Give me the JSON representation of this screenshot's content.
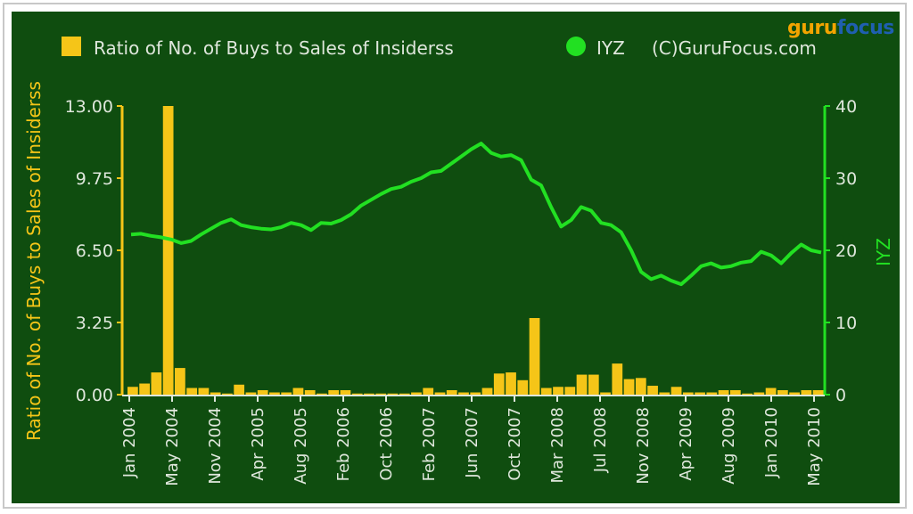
{
  "chart_data": {
    "type": "bar+line",
    "legend": {
      "bar_label": "Ratio of No. of Buys to Sales of Insiderss",
      "line_label": "IYZ",
      "credit": "(C)GuruFocus.com"
    },
    "brand": {
      "part1": "guru",
      "part2": "focus"
    },
    "y_left": {
      "label": "Ratio of No. of Buys to Sales of Insiderss",
      "ticks": [
        "13.00",
        "9.75",
        "6.50",
        "3.25",
        "0.00"
      ],
      "lim": [
        0,
        13
      ]
    },
    "y_right": {
      "label": "IYZ",
      "ticks": [
        "40",
        "30",
        "20",
        "10",
        "0"
      ],
      "lim": [
        0,
        40
      ]
    },
    "x_ticks": [
      "Jan 2004",
      "May 2004",
      "Nov 2004",
      "Apr 2005",
      "Aug 2005",
      "Feb 2006",
      "Oct 2006",
      "Feb 2007",
      "Jun 2007",
      "Oct 2007",
      "Mar 2008",
      "Jul 2008",
      "Nov 2008",
      "Apr 2009",
      "Aug 2009",
      "Jan 2010",
      "May 2010"
    ],
    "bars": [
      0.35,
      0.5,
      1.0,
      13.0,
      1.2,
      0.3,
      0.3,
      0.1,
      0.05,
      0.45,
      0.1,
      0.2,
      0.1,
      0.1,
      0.3,
      0.2,
      0.05,
      0.2,
      0.2,
      0.05,
      0.05,
      0.05,
      0.05,
      0.05,
      0.1,
      0.3,
      0.1,
      0.2,
      0.1,
      0.1,
      0.3,
      0.95,
      1.0,
      0.65,
      3.45,
      0.3,
      0.35,
      0.35,
      0.9,
      0.9,
      0.1,
      1.4,
      0.7,
      0.75,
      0.4,
      0.1,
      0.35,
      0.1,
      0.1,
      0.1,
      0.2,
      0.2,
      0.05,
      0.1,
      0.3,
      0.2,
      0.1,
      0.2,
      0.2
    ],
    "line": [
      [
        0,
        22.2
      ],
      [
        0.5,
        22.3
      ],
      [
        1,
        22.0
      ],
      [
        1.5,
        21.8
      ],
      [
        2,
        21.5
      ],
      [
        2.5,
        21.0
      ],
      [
        3,
        21.3
      ],
      [
        3.5,
        22.2
      ],
      [
        4,
        23.0
      ],
      [
        4.5,
        23.8
      ],
      [
        5,
        24.3
      ],
      [
        5.5,
        23.5
      ],
      [
        6,
        23.2
      ],
      [
        6.5,
        23.0
      ],
      [
        7,
        22.9
      ],
      [
        7.5,
        23.2
      ],
      [
        8,
        23.8
      ],
      [
        8.5,
        23.5
      ],
      [
        9,
        22.8
      ],
      [
        9.5,
        23.8
      ],
      [
        10,
        23.7
      ],
      [
        10.5,
        24.2
      ],
      [
        11,
        25.0
      ],
      [
        11.5,
        26.2
      ],
      [
        12,
        27.0
      ],
      [
        12.5,
        27.8
      ],
      [
        13,
        28.5
      ],
      [
        13.5,
        28.8
      ],
      [
        14,
        29.5
      ],
      [
        14.5,
        30.0
      ],
      [
        15,
        30.8
      ],
      [
        15.5,
        31.0
      ],
      [
        16,
        32.0
      ],
      [
        16.5,
        33.0
      ],
      [
        17,
        34.0
      ],
      [
        17.5,
        34.8
      ],
      [
        18,
        33.5
      ],
      [
        18.5,
        33.0
      ],
      [
        19,
        33.2
      ],
      [
        19.5,
        32.5
      ],
      [
        20,
        29.8
      ],
      [
        20.5,
        29.0
      ],
      [
        21,
        26.0
      ],
      [
        21.5,
        23.3
      ],
      [
        22,
        24.2
      ],
      [
        22.5,
        26.0
      ],
      [
        23,
        25.5
      ],
      [
        23.5,
        23.8
      ],
      [
        24,
        23.5
      ],
      [
        24.5,
        22.5
      ],
      [
        25,
        20.0
      ],
      [
        25.5,
        17.0
      ],
      [
        26,
        16.0
      ],
      [
        26.5,
        16.5
      ],
      [
        27,
        15.8
      ],
      [
        27.5,
        15.3
      ],
      [
        28,
        16.5
      ],
      [
        28.5,
        17.8
      ],
      [
        29,
        18.2
      ],
      [
        29.5,
        17.6
      ],
      [
        30,
        17.8
      ],
      [
        30.5,
        18.3
      ],
      [
        31,
        18.5
      ],
      [
        31.5,
        19.8
      ],
      [
        32,
        19.3
      ],
      [
        32.5,
        18.2
      ],
      [
        33,
        19.6
      ],
      [
        33.5,
        20.8
      ],
      [
        34,
        20.0
      ],
      [
        34.5,
        19.7
      ]
    ],
    "x_count": 59
  }
}
